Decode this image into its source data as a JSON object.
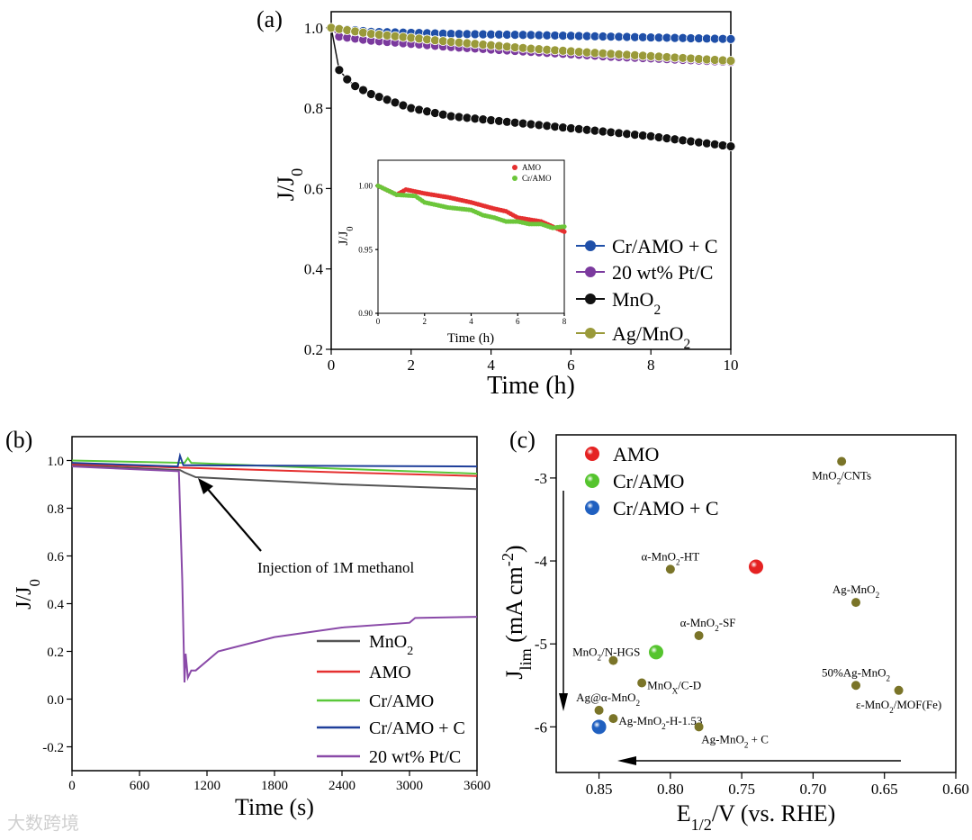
{
  "watermark": "大数跨境",
  "chart_data": [
    {
      "panel": "(a)",
      "type": "line",
      "xlabel": "Time (h)",
      "ylabel": "J/J0",
      "xlim": [
        0,
        10
      ],
      "ylim": [
        0.2,
        1.04
      ],
      "xticks": [
        0,
        2,
        4,
        6,
        8,
        10
      ],
      "yticks": [
        0.2,
        0.4,
        0.6,
        0.8,
        1.0
      ],
      "series": [
        {
          "name": "Cr/AMO + C",
          "color": "#1f4fa8",
          "x": [
            0,
            1,
            3,
            5,
            7,
            10
          ],
          "y": [
            1.0,
            0.99,
            0.985,
            0.982,
            0.978,
            0.972
          ]
        },
        {
          "name": "20 wt% Pt/C",
          "color": "#7b3a9e",
          "x": [
            0,
            0.2,
            1,
            3,
            5,
            7,
            10
          ],
          "y": [
            1.0,
            0.978,
            0.968,
            0.952,
            0.94,
            0.928,
            0.915
          ]
        },
        {
          "name": "MnO2",
          "color": "#111111",
          "x": [
            0,
            0.05,
            0.2,
            0.5,
            1,
            2,
            3,
            5,
            8,
            10
          ],
          "y": [
            1.0,
            0.93,
            0.895,
            0.86,
            0.835,
            0.8,
            0.78,
            0.76,
            0.73,
            0.705
          ]
        },
        {
          "name": "Ag/MnO2",
          "color": "#9a9a3a",
          "x": [
            0,
            1,
            3,
            5,
            7,
            10
          ],
          "y": [
            1.0,
            0.985,
            0.965,
            0.948,
            0.935,
            0.918
          ]
        }
      ],
      "inset": {
        "type": "line",
        "xlabel": "Time (h)",
        "ylabel": "J/J0",
        "xlim": [
          0,
          8
        ],
        "ylim": [
          0.9,
          1.02
        ],
        "xticks": [
          0,
          2,
          4,
          6,
          8
        ],
        "yticks": [
          "0.90",
          "0.95",
          "1.00"
        ],
        "series": [
          {
            "name": "AMO",
            "color": "#e53030",
            "x": [
              0,
              0.8,
              1.2,
              2,
              3,
              4,
              5,
              5.5,
              6,
              7,
              8
            ],
            "y": [
              1.0,
              0.993,
              0.997,
              0.994,
              0.991,
              0.987,
              0.982,
              0.98,
              0.975,
              0.972,
              0.964
            ]
          },
          {
            "name": "Cr/AMO",
            "color": "#6cc63a",
            "x": [
              0,
              0.8,
              1.6,
              2,
              3,
              3.5,
              4,
              4.5,
              5,
              5.5,
              6,
              6.5,
              7,
              7.5,
              8
            ],
            "y": [
              1.0,
              0.993,
              0.992,
              0.987,
              0.983,
              0.982,
              0.981,
              0.977,
              0.975,
              0.972,
              0.972,
              0.97,
              0.97,
              0.967,
              0.968
            ]
          }
        ]
      }
    },
    {
      "panel": "(b)",
      "type": "line",
      "xlabel": "Time (s)",
      "ylabel": "J/J0",
      "xlim": [
        0,
        3600
      ],
      "ylim": [
        -0.3,
        1.1
      ],
      "xticks": [
        0,
        600,
        1200,
        1800,
        2400,
        3000,
        3600
      ],
      "yticks": [
        "-0.2",
        "0.0",
        "0.2",
        "0.4",
        "0.6",
        "0.8",
        "1.0"
      ],
      "annotation": "Injection of 1M methanol",
      "series": [
        {
          "name": "MnO2",
          "color": "#555555",
          "x": [
            0,
            960,
            1000,
            1100,
            2400,
            3600
          ],
          "y": [
            0.98,
            0.96,
            0.95,
            0.93,
            0.9,
            0.88
          ]
        },
        {
          "name": "AMO",
          "color": "#e53030",
          "x": [
            0,
            1000,
            2400,
            3600
          ],
          "y": [
            0.985,
            0.97,
            0.95,
            0.935
          ]
        },
        {
          "name": "Cr/AMO",
          "color": "#5ac83a",
          "x": [
            0,
            1000,
            1030,
            1060,
            2400,
            3600
          ],
          "y": [
            1.0,
            0.99,
            1.01,
            0.99,
            0.965,
            0.945
          ]
        },
        {
          "name": "Cr/AMO + C",
          "color": "#1f3f9a",
          "x": [
            0,
            940,
            960,
            990,
            1000,
            3600
          ],
          "y": [
            0.99,
            0.975,
            1.02,
            0.98,
            0.98,
            0.975
          ]
        },
        {
          "name": "20 wt% Pt/C",
          "color": "#8a4aa8",
          "x": [
            0,
            950,
            980,
            1000,
            1010,
            1030,
            1060,
            1100,
            1300,
            1800,
            2400,
            3000,
            3050,
            3600
          ],
          "y": [
            0.975,
            0.955,
            0.5,
            0.07,
            0.19,
            0.09,
            0.12,
            0.12,
            0.2,
            0.26,
            0.3,
            0.32,
            0.34,
            0.345
          ]
        }
      ]
    },
    {
      "panel": "(c)",
      "type": "scatter",
      "xlabel": "E1/2/V (vs. RHE)",
      "ylabel": "Jlim (mA cm-2)",
      "xlim": [
        0.88,
        0.6
      ],
      "ylim": [
        -6.55,
        -2.48
      ],
      "xticks": [
        "0.85",
        "0.80",
        "0.75",
        "0.70",
        "0.65",
        "0.60"
      ],
      "yticks": [
        "-3",
        "-4",
        "-5",
        "-6"
      ],
      "legend": [
        {
          "name": "AMO",
          "color": "#e52222"
        },
        {
          "name": "Cr/AMO",
          "color": "#55c42e"
        },
        {
          "name": "Cr/AMO + C",
          "color": "#2060c0"
        }
      ],
      "points": [
        {
          "label": "MnO2/CNTs",
          "x": 0.68,
          "y": -2.8,
          "pos": "below"
        },
        {
          "label": "α-MnO2-HT",
          "x": 0.8,
          "y": -4.1,
          "pos": "above"
        },
        {
          "label": "AMO",
          "x": 0.74,
          "y": -4.07,
          "series": 0
        },
        {
          "label": "Ag-MnO2",
          "x": 0.67,
          "y": -4.5,
          "pos": "above"
        },
        {
          "label": "α-MnO2-SF",
          "x": 0.78,
          "y": -4.9,
          "pos": "aboveright"
        },
        {
          "label": "Cr/AMO",
          "x": 0.81,
          "y": -5.1,
          "series": 1
        },
        {
          "label": "MnO2/N-HGS",
          "x": 0.84,
          "y": -5.2,
          "pos": "aboveleft"
        },
        {
          "label": "MnOX/C-D",
          "x": 0.82,
          "y": -5.47,
          "pos": "right"
        },
        {
          "label": "50%Ag-MnO2",
          "x": 0.67,
          "y": -5.5,
          "pos": "above"
        },
        {
          "label": "ε-MnO2/MOF(Fe)",
          "x": 0.64,
          "y": -5.56,
          "pos": "below"
        },
        {
          "label": "Ag@α-MnO2",
          "x": 0.85,
          "y": -5.8,
          "pos": "aboveright"
        },
        {
          "label": "Ag-MnO2-H-1.53",
          "x": 0.84,
          "y": -5.9,
          "pos": "right"
        },
        {
          "label": "Cr/AMO + C",
          "x": 0.85,
          "y": -6.0,
          "series": 2
        },
        {
          "label": "Ag-MnO2 + C",
          "x": 0.78,
          "y": -6.0,
          "pos": "belowright"
        }
      ]
    }
  ]
}
